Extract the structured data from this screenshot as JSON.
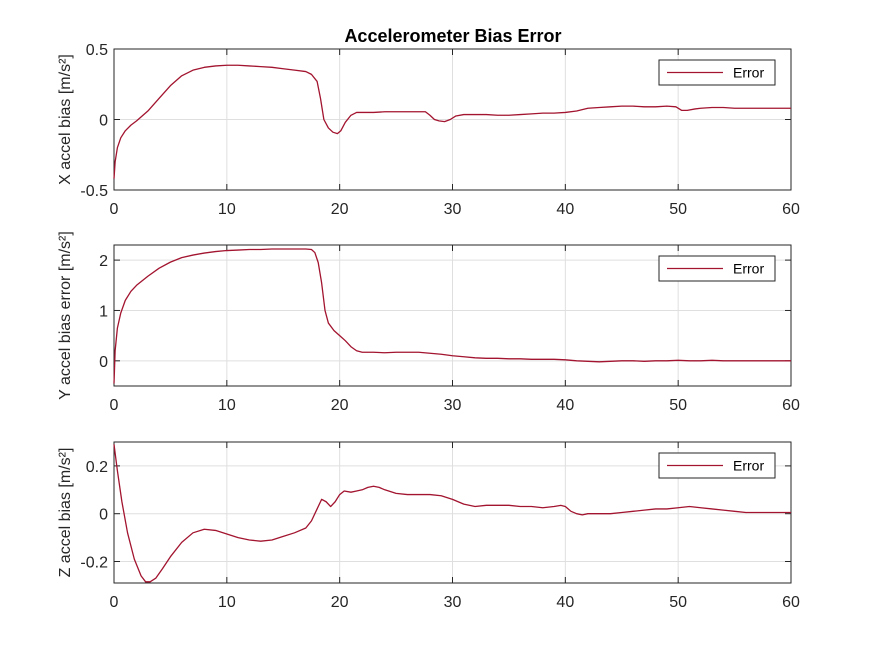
{
  "figure": {
    "title": "Accelerometer Bias Error"
  },
  "colors": {
    "series": "#A2142F",
    "axis": "#262626",
    "grid": "#DFDFDF"
  },
  "chart_data": [
    {
      "type": "line",
      "ylabel": "X accel bias [m/s²]",
      "xlim": [
        0,
        60
      ],
      "ylim": [
        -0.5,
        0.5
      ],
      "xticks": [
        0,
        10,
        20,
        30,
        40,
        50,
        60
      ],
      "yticks": [
        -0.5,
        0,
        0.5
      ],
      "ytick_labels": [
        "-0.5",
        "0",
        "0.5"
      ],
      "grid": true,
      "legend_position": "top-right",
      "series": [
        {
          "name": "Error",
          "x": [
            0,
            0.1,
            0.3,
            0.6,
            1,
            1.5,
            2,
            3,
            4,
            5,
            6,
            7,
            8,
            9,
            10,
            11,
            12,
            13,
            14,
            15,
            16,
            17,
            17.5,
            18,
            18.3,
            18.6,
            19,
            19.4,
            19.8,
            20.1,
            20.5,
            21,
            21.5,
            22,
            23,
            24,
            25,
            26,
            27,
            27.6,
            28,
            28.4,
            28.8,
            29.3,
            29.8,
            30.3,
            31,
            32,
            33,
            34,
            35,
            36,
            37,
            38,
            39,
            40,
            41,
            42,
            43,
            44,
            45,
            46,
            47,
            48,
            49,
            49.8,
            50.3,
            50.8,
            51.5,
            52,
            53,
            54,
            55,
            56,
            57,
            58,
            59,
            60
          ],
          "y": [
            -0.42,
            -0.3,
            -0.2,
            -0.13,
            -0.08,
            -0.04,
            -0.01,
            0.06,
            0.15,
            0.24,
            0.31,
            0.35,
            0.37,
            0.38,
            0.385,
            0.385,
            0.38,
            0.375,
            0.37,
            0.36,
            0.35,
            0.34,
            0.32,
            0.27,
            0.15,
            0.0,
            -0.06,
            -0.09,
            -0.1,
            -0.08,
            -0.02,
            0.03,
            0.05,
            0.05,
            0.05,
            0.055,
            0.055,
            0.055,
            0.055,
            0.055,
            0.03,
            0.0,
            -0.01,
            -0.015,
            0.0,
            0.025,
            0.035,
            0.035,
            0.035,
            0.03,
            0.03,
            0.035,
            0.04,
            0.045,
            0.045,
            0.05,
            0.06,
            0.08,
            0.085,
            0.09,
            0.095,
            0.095,
            0.09,
            0.09,
            0.095,
            0.09,
            0.065,
            0.065,
            0.075,
            0.08,
            0.085,
            0.085,
            0.08,
            0.08,
            0.08,
            0.08,
            0.08,
            0.08
          ]
        }
      ]
    },
    {
      "type": "line",
      "ylabel": "Y accel bias error [m/s²]",
      "xlim": [
        0,
        60
      ],
      "ylim": [
        -0.5,
        2.3
      ],
      "xticks": [
        0,
        10,
        20,
        30,
        40,
        50,
        60
      ],
      "yticks": [
        0,
        1,
        2
      ],
      "ytick_labels": [
        "0",
        "1",
        "2"
      ],
      "grid": true,
      "legend_position": "top-right",
      "series": [
        {
          "name": "Error",
          "x": [
            0,
            0.1,
            0.3,
            0.6,
            1,
            1.5,
            2,
            3,
            4,
            5,
            6,
            7,
            8,
            9,
            10,
            11,
            12,
            13,
            14,
            15,
            16,
            17,
            17.5,
            17.8,
            18.1,
            18.4,
            18.7,
            19,
            19.5,
            20,
            20.5,
            21,
            21.5,
            22,
            23,
            24,
            25,
            26,
            27,
            28,
            29,
            30,
            31,
            32,
            33,
            34,
            35,
            36,
            37,
            38,
            39,
            40,
            41,
            42,
            43,
            44,
            45,
            46,
            47,
            48,
            49,
            50,
            51,
            52,
            53,
            54,
            55,
            56,
            57,
            58,
            59,
            60
          ],
          "y": [
            -0.45,
            0.2,
            0.65,
            0.95,
            1.2,
            1.38,
            1.5,
            1.68,
            1.84,
            1.96,
            2.05,
            2.1,
            2.14,
            2.17,
            2.19,
            2.2,
            2.21,
            2.21,
            2.22,
            2.22,
            2.22,
            2.22,
            2.21,
            2.15,
            1.95,
            1.55,
            1.0,
            0.75,
            0.6,
            0.5,
            0.4,
            0.28,
            0.2,
            0.17,
            0.17,
            0.16,
            0.17,
            0.17,
            0.17,
            0.15,
            0.13,
            0.1,
            0.08,
            0.06,
            0.05,
            0.05,
            0.04,
            0.04,
            0.03,
            0.03,
            0.03,
            0.02,
            0.0,
            -0.01,
            -0.02,
            -0.01,
            0.0,
            0.0,
            -0.01,
            0.0,
            0.0,
            0.01,
            0.0,
            0.0,
            0.01,
            0.0,
            0.0,
            0.0,
            0.0,
            0.0,
            0.0,
            0.0
          ]
        }
      ]
    },
    {
      "type": "line",
      "ylabel": "Z accel bias [m/s²]",
      "xlim": [
        0,
        60
      ],
      "ylim": [
        -0.29,
        0.3
      ],
      "xticks": [
        0,
        10,
        20,
        30,
        40,
        50,
        60
      ],
      "yticks": [
        -0.2,
        0,
        0.2
      ],
      "ytick_labels": [
        "-0.2",
        "0",
        "0.2"
      ],
      "grid": true,
      "legend_position": "top-right",
      "series": [
        {
          "name": "Error",
          "x": [
            0,
            0.3,
            0.7,
            1.2,
            1.8,
            2.4,
            2.8,
            3.2,
            3.7,
            4.3,
            5,
            6,
            7,
            8,
            9,
            10,
            11,
            12,
            13,
            14,
            15,
            16,
            17,
            17.5,
            18,
            18.4,
            18.8,
            19.2,
            19.6,
            20,
            20.4,
            21,
            21.5,
            22,
            22.5,
            23,
            23.5,
            24,
            25,
            26,
            27,
            28,
            29,
            30,
            31,
            32,
            33,
            34,
            35,
            36,
            37,
            38,
            39,
            39.6,
            40,
            40.5,
            41,
            41.5,
            42,
            43,
            44,
            45,
            46,
            47,
            48,
            49,
            50,
            51,
            52,
            53,
            54,
            55,
            56,
            57,
            58,
            59,
            60
          ],
          "y": [
            0.29,
            0.18,
            0.05,
            -0.08,
            -0.19,
            -0.26,
            -0.285,
            -0.285,
            -0.27,
            -0.23,
            -0.18,
            -0.12,
            -0.08,
            -0.065,
            -0.07,
            -0.085,
            -0.1,
            -0.11,
            -0.115,
            -0.11,
            -0.095,
            -0.08,
            -0.06,
            -0.03,
            0.02,
            0.06,
            0.05,
            0.03,
            0.05,
            0.08,
            0.095,
            0.09,
            0.095,
            0.1,
            0.11,
            0.115,
            0.11,
            0.1,
            0.085,
            0.08,
            0.08,
            0.08,
            0.075,
            0.06,
            0.04,
            0.03,
            0.035,
            0.035,
            0.035,
            0.03,
            0.03,
            0.025,
            0.03,
            0.035,
            0.03,
            0.01,
            0.0,
            -0.005,
            0.0,
            0.0,
            0.0,
            0.005,
            0.01,
            0.015,
            0.02,
            0.02,
            0.025,
            0.03,
            0.025,
            0.02,
            0.015,
            0.01,
            0.005,
            0.005,
            0.005,
            0.005,
            0.005
          ]
        }
      ]
    }
  ]
}
